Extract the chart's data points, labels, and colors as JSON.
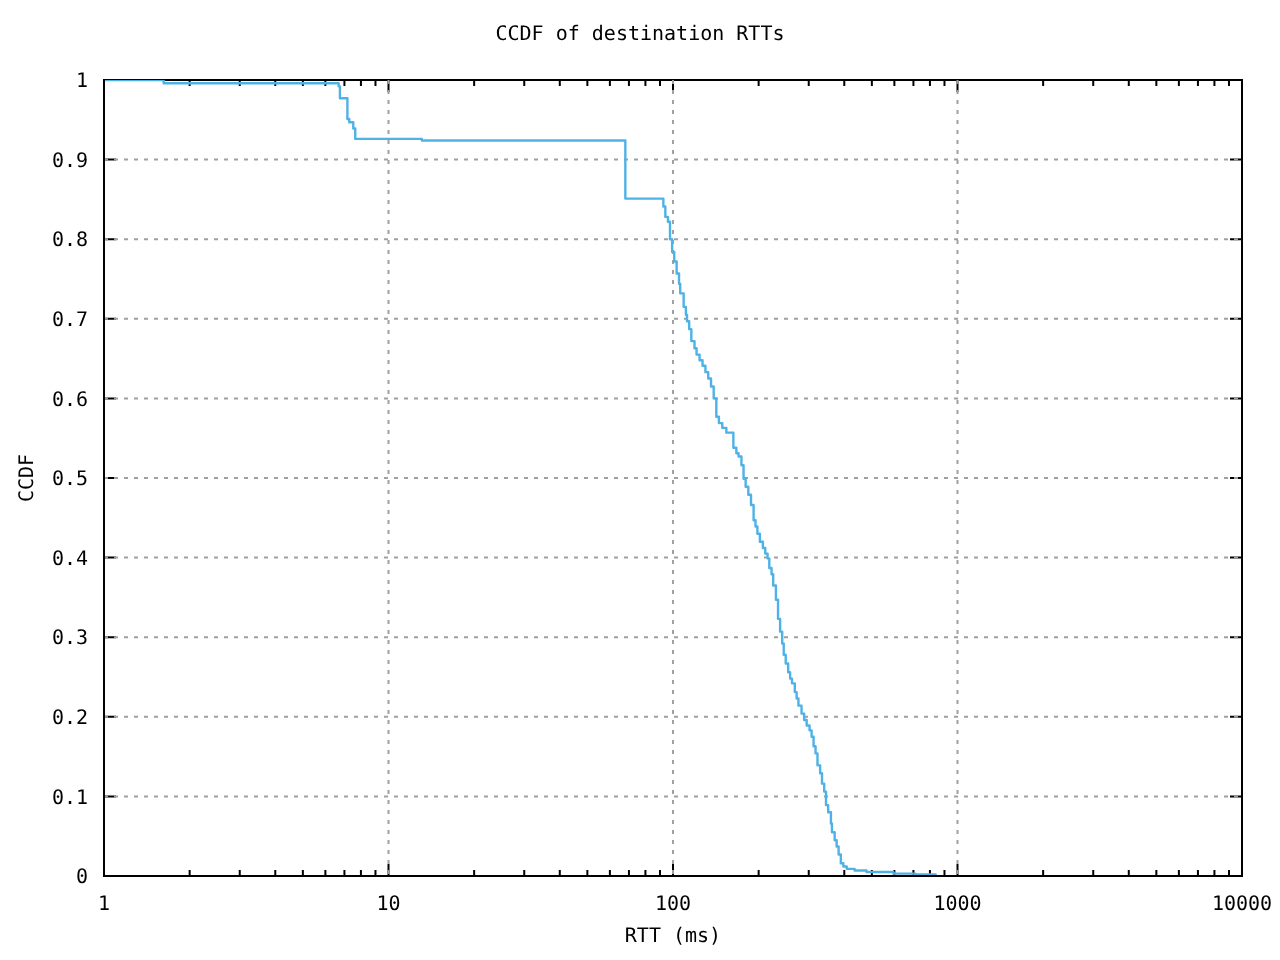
{
  "chart_data": {
    "type": "step",
    "title": "CCDF of destination RTTs",
    "xlabel": "RTT (ms)",
    "ylabel": "CCDF",
    "color": "#4fb2e6",
    "x": [
      1,
      1.62,
      6.68,
      6.75,
      7.17,
      7.28,
      7.52,
      7.64,
      13.1,
      68,
      92.5,
      94,
      96,
      97.6,
      99.3,
      101,
      103,
      105,
      106,
      109,
      111,
      112,
      114,
      116,
      119,
      121,
      124,
      127,
      130,
      133,
      136,
      139,
      142,
      145,
      149,
      154,
      163,
      167,
      170,
      174,
      177,
      180,
      184,
      188,
      192,
      195,
      198,
      202,
      207,
      211,
      215,
      218,
      222,
      225,
      230,
      234,
      238,
      242,
      245,
      249,
      254,
      258,
      262,
      268,
      272,
      276,
      283,
      289,
      295,
      302,
      307,
      312,
      317,
      322,
      329,
      334,
      340,
      345,
      351,
      359,
      362,
      370,
      376,
      382,
      389,
      397,
      408,
      435,
      479,
      595,
      711,
      845
    ],
    "values": [
      1,
      0.996,
      0.992,
      0.977,
      0.951,
      0.947,
      0.939,
      0.926,
      0.924,
      0.851,
      0.841,
      0.828,
      0.822,
      0.8,
      0.784,
      0.772,
      0.757,
      0.744,
      0.732,
      0.715,
      0.705,
      0.697,
      0.687,
      0.672,
      0.663,
      0.655,
      0.648,
      0.641,
      0.633,
      0.625,
      0.615,
      0.6,
      0.577,
      0.569,
      0.563,
      0.557,
      0.538,
      0.531,
      0.527,
      0.516,
      0.499,
      0.489,
      0.479,
      0.466,
      0.447,
      0.439,
      0.43,
      0.42,
      0.412,
      0.405,
      0.399,
      0.387,
      0.379,
      0.365,
      0.347,
      0.323,
      0.307,
      0.292,
      0.278,
      0.267,
      0.256,
      0.248,
      0.242,
      0.231,
      0.223,
      0.214,
      0.204,
      0.196,
      0.189,
      0.183,
      0.175,
      0.163,
      0.154,
      0.139,
      0.129,
      0.116,
      0.106,
      0.089,
      0.08,
      0.066,
      0.055,
      0.045,
      0.037,
      0.027,
      0.016,
      0.012,
      0.009,
      0.007,
      0.005,
      0.003,
      0.002,
      0.002
    ],
    "log": "x",
    "xlim": [
      1,
      10000
    ],
    "xticks": [
      1,
      {
        "value": 2,
        "label": null
      },
      {
        "value": 3,
        "label": null
      },
      {
        "value": 4,
        "label": null
      },
      {
        "value": 5,
        "label": null
      },
      {
        "value": 6,
        "label": null
      },
      {
        "value": 7,
        "label": null
      },
      {
        "value": 8,
        "label": null
      },
      {
        "value": 9,
        "label": null
      },
      10,
      {
        "value": 20,
        "label": null
      },
      {
        "value": 30,
        "label": null
      },
      {
        "value": 40,
        "label": null
      },
      {
        "value": 50,
        "label": null
      },
      {
        "value": 60,
        "label": null
      },
      {
        "value": 70,
        "label": null
      },
      {
        "value": 80,
        "label": null
      },
      {
        "value": 90,
        "label": null
      },
      100,
      {
        "value": 200,
        "label": null
      },
      {
        "value": 300,
        "label": null
      },
      {
        "value": 400,
        "label": null
      },
      {
        "value": 500,
        "label": null
      },
      {
        "value": 600,
        "label": null
      },
      {
        "value": 700,
        "label": null
      },
      {
        "value": 800,
        "label": null
      },
      {
        "value": 900,
        "label": null
      },
      1000,
      {
        "value": 2000,
        "label": null
      },
      {
        "value": 3000,
        "label": null
      },
      {
        "value": 4000,
        "label": null
      },
      {
        "value": 5000,
        "label": null
      },
      {
        "value": 6000,
        "label": null
      },
      {
        "value": 7000,
        "label": null
      },
      {
        "value": 8000,
        "label": null
      },
      {
        "value": 9000,
        "label": null
      },
      10000
    ],
    "ylim": [
      0,
      1
    ],
    "yticks": [
      0,
      0.1,
      0.2,
      0.3,
      0.4,
      0.5,
      0.6,
      0.7,
      0.8,
      0.9,
      1
    ],
    "grid": true,
    "line_style": "solid"
  }
}
